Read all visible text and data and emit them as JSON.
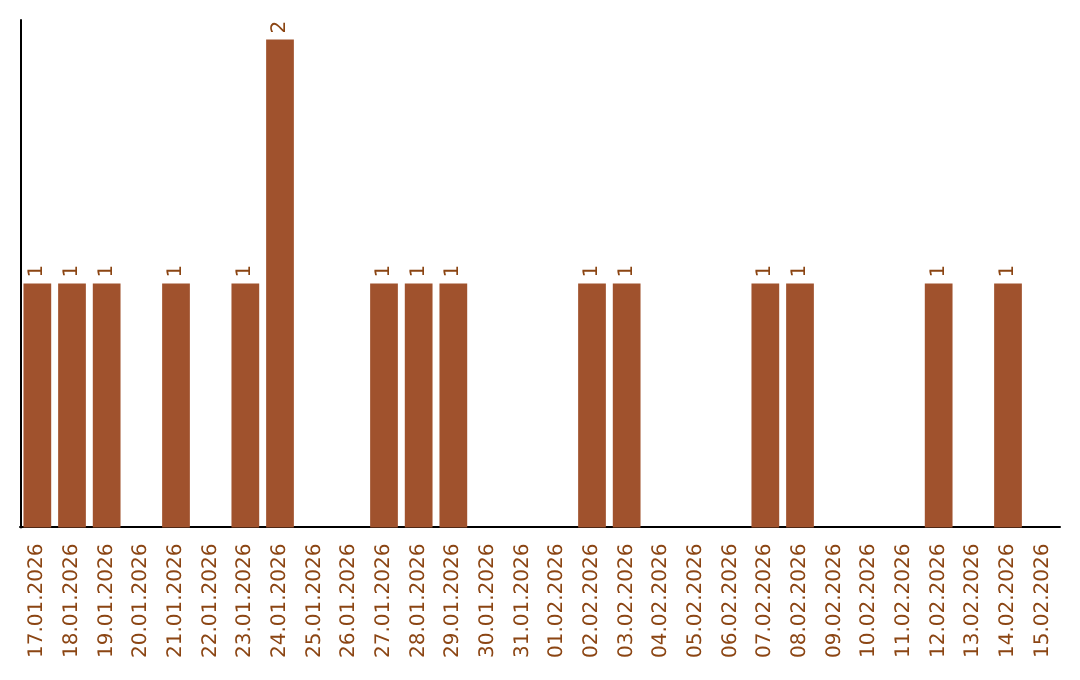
{
  "chart_data": {
    "type": "bar",
    "categories": [
      "17.01.2026",
      "18.01.2026",
      "19.01.2026",
      "20.01.2026",
      "21.01.2026",
      "22.01.2026",
      "23.01.2026",
      "24.01.2026",
      "25.01.2026",
      "26.01.2026",
      "27.01.2026",
      "28.01.2026",
      "29.01.2026",
      "30.01.2026",
      "31.01.2026",
      "01.02.2026",
      "02.02.2026",
      "03.02.2026",
      "04.02.2026",
      "05.02.2026",
      "06.02.2026",
      "07.02.2026",
      "08.02.2026",
      "09.02.2026",
      "10.02.2026",
      "11.02.2026",
      "12.02.2026",
      "13.02.2026",
      "14.02.2026",
      "15.02.2026"
    ],
    "values": [
      1,
      1,
      1,
      0,
      1,
      0,
      1,
      2,
      0,
      0,
      1,
      1,
      1,
      0,
      0,
      0,
      1,
      1,
      0,
      0,
      0,
      1,
      1,
      0,
      0,
      0,
      1,
      0,
      1,
      0
    ],
    "value_labels": [
      "1",
      "1",
      "1",
      null,
      "1",
      null,
      "1",
      "2",
      null,
      null,
      "1",
      "1",
      "1",
      null,
      null,
      null,
      "1",
      "1",
      null,
      null,
      null,
      "1",
      "1",
      null,
      null,
      null,
      "1",
      null,
      "1",
      null
    ],
    "color": "#a0522d"
  }
}
